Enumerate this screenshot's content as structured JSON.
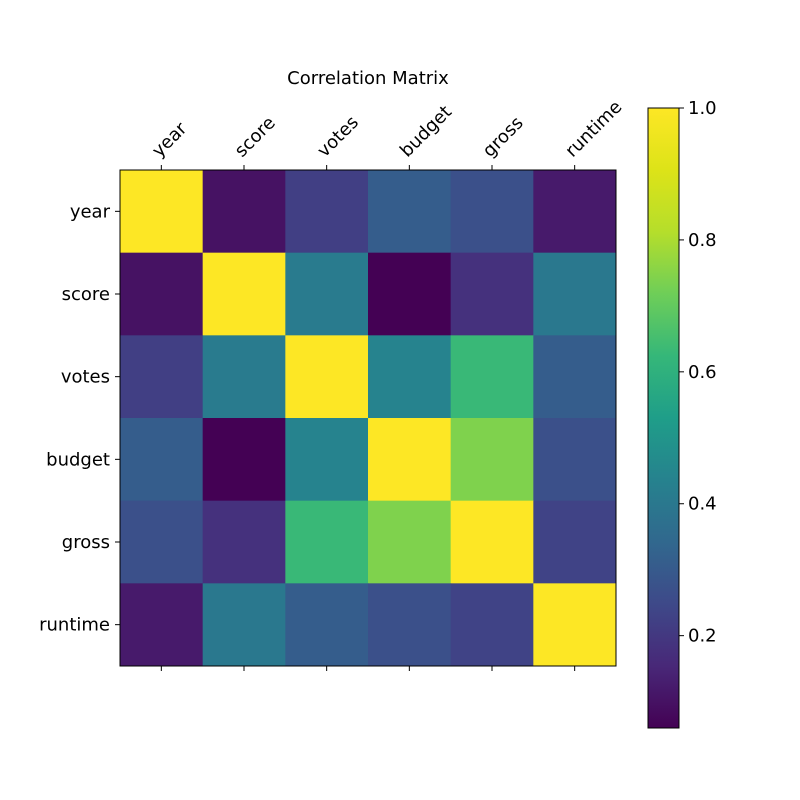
{
  "chart_data": {
    "type": "heatmap",
    "title": "Correlation Matrix",
    "labels": [
      "year",
      "score",
      "votes",
      "budget",
      "gross",
      "runtime"
    ],
    "matrix": [
      [
        1.0,
        0.1,
        0.22,
        0.31,
        0.27,
        0.12
      ],
      [
        0.1,
        1.0,
        0.41,
        0.06,
        0.18,
        0.4
      ],
      [
        0.22,
        0.41,
        1.0,
        0.44,
        0.63,
        0.31
      ],
      [
        0.31,
        0.06,
        0.44,
        1.0,
        0.74,
        0.27
      ],
      [
        0.27,
        0.18,
        0.63,
        0.74,
        1.0,
        0.23
      ],
      [
        0.12,
        0.4,
        0.31,
        0.27,
        0.23,
        1.0
      ]
    ],
    "colorbar": {
      "range": [
        0.06,
        1.0
      ],
      "ticks": [
        0.2,
        0.4,
        0.6,
        0.8,
        1.0
      ],
      "tick_labels": [
        "0.2",
        "0.4",
        "0.6",
        "0.8",
        "1.0"
      ],
      "colormap": "viridis"
    },
    "x_tick_position": "top",
    "grid": false
  }
}
